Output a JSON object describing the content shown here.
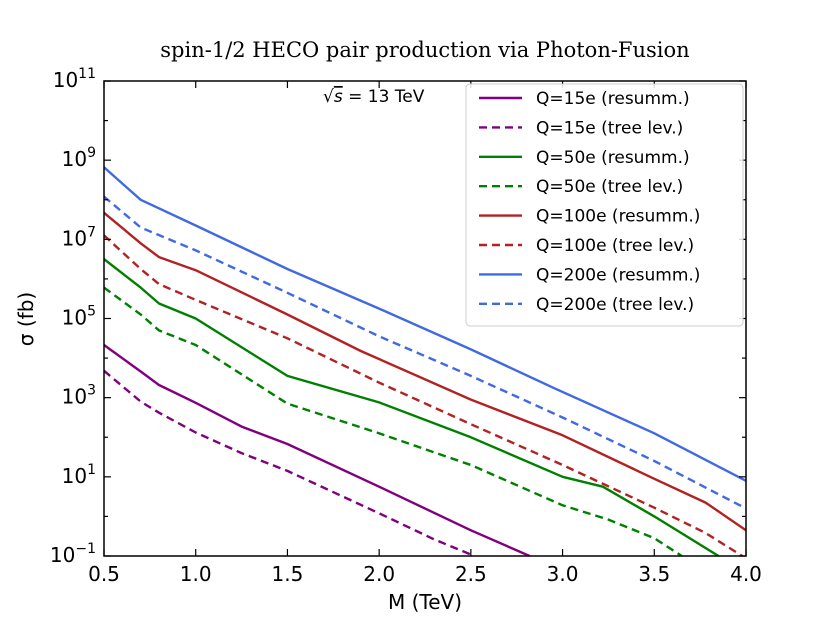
{
  "chart_data": {
    "type": "line",
    "title": "spin-1/2 HECO pair production via Photon-Fusion",
    "xlabel": "M (TeV)",
    "ylabel": "σ (fb)",
    "xlim": [
      0.5,
      4.0
    ],
    "ylim_log10": [
      -1,
      11
    ],
    "y_scale": "log",
    "annotation": {
      "root": "√",
      "s": "s",
      "rest": " = 13  TeV"
    },
    "x_ticks": [
      {
        "value": 0.5,
        "label": "0.5"
      },
      {
        "value": 1.0,
        "label": "1.0"
      },
      {
        "value": 1.5,
        "label": "1.5"
      },
      {
        "value": 2.0,
        "label": "2.0"
      },
      {
        "value": 2.5,
        "label": "2.5"
      },
      {
        "value": 3.0,
        "label": "3.0"
      },
      {
        "value": 3.5,
        "label": "3.5"
      },
      {
        "value": 4.0,
        "label": "4.0"
      }
    ],
    "y_ticks": [
      {
        "exp": -1,
        "base": "10",
        "sup": "−1"
      },
      {
        "exp": 1,
        "base": "10",
        "sup": "1"
      },
      {
        "exp": 3,
        "base": "10",
        "sup": "3"
      },
      {
        "exp": 5,
        "base": "10",
        "sup": "5"
      },
      {
        "exp": 7,
        "base": "10",
        "sup": "7"
      },
      {
        "exp": 9,
        "base": "10",
        "sup": "9"
      },
      {
        "exp": 11,
        "base": "10",
        "sup": "11"
      }
    ],
    "legend_position": "top-right",
    "series": [
      {
        "name": "Q=15e (resumm.)",
        "color": "#800080",
        "dash": "solid",
        "x": [
          0.5,
          0.7,
          0.8,
          1.0,
          1.25,
          1.5,
          2.0,
          2.5,
          2.82
        ],
        "log10_y": [
          4.33,
          3.66,
          3.32,
          2.87,
          2.27,
          1.83,
          0.75,
          -0.35,
          -1.0
        ]
      },
      {
        "name": "Q=15e (tree lev.)",
        "color": "#800080",
        "dash": "dashed",
        "x": [
          0.5,
          0.7,
          0.8,
          1.0,
          1.25,
          1.5,
          2.0,
          2.3,
          2.52
        ],
        "log10_y": [
          3.68,
          2.9,
          2.62,
          2.12,
          1.6,
          1.15,
          0.08,
          -0.58,
          -1.0
        ]
      },
      {
        "name": "Q=50e (resumm.)",
        "color": "#008000",
        "dash": "solid",
        "x": [
          0.5,
          0.7,
          0.8,
          1.0,
          1.5,
          2.0,
          2.5,
          3.0,
          3.22,
          3.5,
          3.85
        ],
        "log10_y": [
          6.5,
          5.78,
          5.38,
          5.0,
          3.55,
          2.88,
          2.0,
          1.0,
          0.75,
          0.0,
          -1.0
        ]
      },
      {
        "name": "Q=50e (tree lev.)",
        "color": "#008000",
        "dash": "dashed",
        "x": [
          0.5,
          0.7,
          0.8,
          1.0,
          1.5,
          2.0,
          2.5,
          3.0,
          3.25,
          3.5,
          3.65
        ],
        "log10_y": [
          5.78,
          5.1,
          4.7,
          4.33,
          2.85,
          2.1,
          1.3,
          0.28,
          -0.08,
          -0.55,
          -1.0
        ]
      },
      {
        "name": "Q=100e (resumm.)",
        "color": "#b22222",
        "dash": "solid",
        "x": [
          0.5,
          0.7,
          0.8,
          1.0,
          1.5,
          1.9,
          2.5,
          3.0,
          3.5,
          3.78,
          4.0
        ],
        "log10_y": [
          7.67,
          6.9,
          6.55,
          6.22,
          5.1,
          4.18,
          2.95,
          2.05,
          0.95,
          0.35,
          -0.35
        ]
      },
      {
        "name": "Q=100e (tree lev.)",
        "color": "#b22222",
        "dash": "dashed",
        "x": [
          0.5,
          0.7,
          0.8,
          1.0,
          1.5,
          2.0,
          2.5,
          3.0,
          3.5,
          3.78,
          3.98
        ],
        "log10_y": [
          7.1,
          6.25,
          5.87,
          5.47,
          4.5,
          3.38,
          2.33,
          1.3,
          0.22,
          -0.42,
          -1.0
        ]
      },
      {
        "name": "Q=200e (resumm.)",
        "color": "#4169e1",
        "dash": "solid",
        "x": [
          0.5,
          0.7,
          1.0,
          1.5,
          2.0,
          2.5,
          2.95,
          3.5,
          4.0
        ],
        "log10_y": [
          8.82,
          8.0,
          7.35,
          6.25,
          5.25,
          4.22,
          3.25,
          2.1,
          0.9
        ]
      },
      {
        "name": "Q=200e (tree lev.)",
        "color": "#4169e1",
        "dash": "dashed",
        "x": [
          0.5,
          0.7,
          1.0,
          1.5,
          2.0,
          2.5,
          3.0,
          3.5,
          4.0
        ],
        "log10_y": [
          8.08,
          7.3,
          6.72,
          5.65,
          4.55,
          3.55,
          2.5,
          1.4,
          0.2
        ]
      }
    ]
  }
}
